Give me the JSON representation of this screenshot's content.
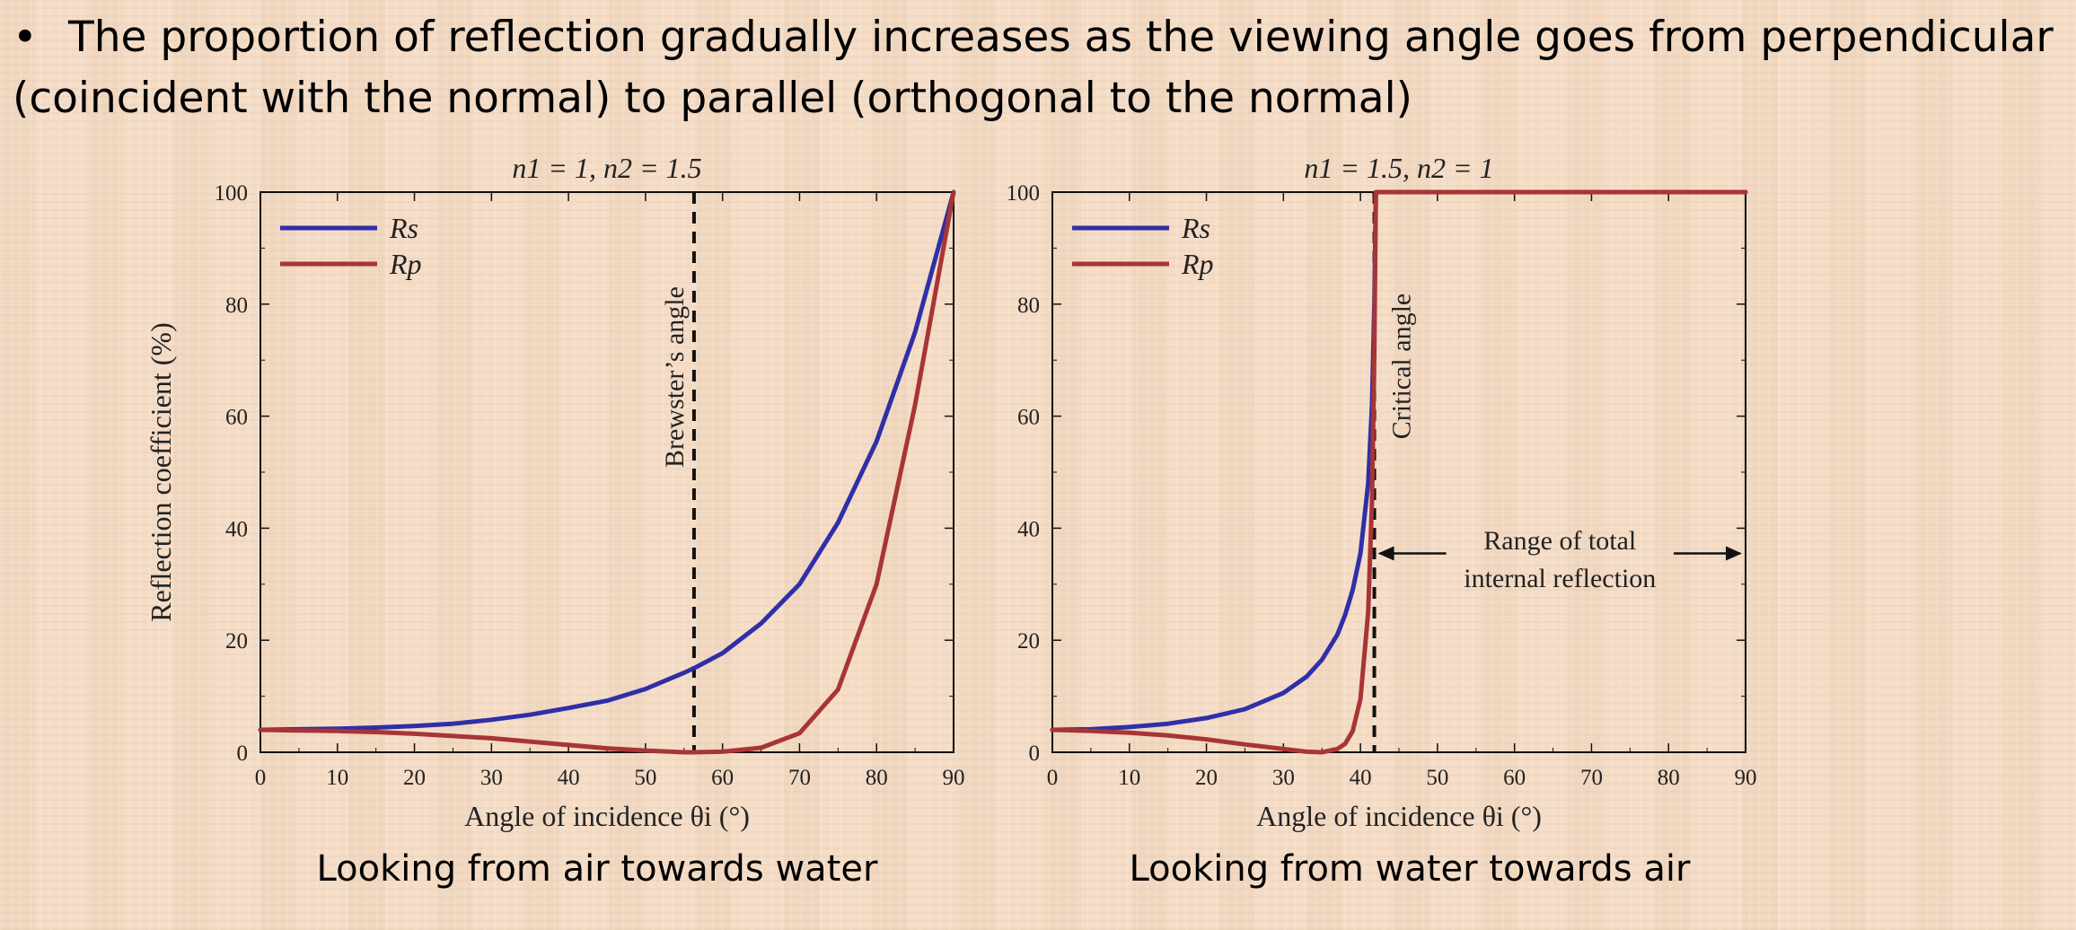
{
  "slide": {
    "bullet": "•",
    "bullet_text": "The proportion of reflection gradually increases as the viewing angle goes from perpendicular (coincident with the normal) to parallel (orthogonal to the normal)",
    "caption_left": "Looking from air towards water",
    "caption_right": "Looking from water towards air"
  },
  "colors": {
    "Rs": "#2f2fa8",
    "Rp": "#a83535",
    "marker": "#111111"
  },
  "chart_data": [
    {
      "type": "line",
      "title": "n1 = 1,  n2 = 1.5",
      "xlabel": "Angle of incidence θi (°)",
      "ylabel": "Reflection coefficient (%)",
      "xlim": [
        0,
        90
      ],
      "ylim": [
        0,
        100
      ],
      "xticks": [
        "0",
        "10",
        "20",
        "30",
        "40",
        "50",
        "60",
        "70",
        "80",
        "90"
      ],
      "yticks": [
        "0",
        "20",
        "40",
        "60",
        "80",
        "100"
      ],
      "legend": "top-left",
      "x": [
        0,
        5,
        10,
        15,
        20,
        25,
        30,
        35,
        40,
        45,
        50,
        55,
        56.3,
        60,
        65,
        70,
        75,
        80,
        85,
        90
      ],
      "series": [
        {
          "name": "Rs",
          "values": [
            4.0,
            4.1,
            4.2,
            4.4,
            4.7,
            5.1,
            5.8,
            6.7,
            7.9,
            9.2,
            11.3,
            14.2,
            15.0,
            17.7,
            23.0,
            30.0,
            41.0,
            55.5,
            75.0,
            100.0
          ]
        },
        {
          "name": "Rp",
          "values": [
            4.0,
            3.9,
            3.8,
            3.6,
            3.3,
            2.9,
            2.5,
            1.9,
            1.3,
            0.7,
            0.3,
            0.0,
            0.0,
            0.1,
            0.8,
            3.4,
            11.2,
            30.0,
            62.0,
            100.0
          ]
        }
      ],
      "annotations": [
        {
          "text": "Brewster’s angle",
          "x": 56.3
        }
      ]
    },
    {
      "type": "line",
      "title": "n1 = 1.5,  n2 = 1",
      "xlabel": "Angle of incidence θi (°)",
      "ylabel": "",
      "xlim": [
        0,
        90
      ],
      "ylim": [
        0,
        100
      ],
      "xticks": [
        "0",
        "10",
        "20",
        "30",
        "40",
        "50",
        "60",
        "70",
        "80",
        "90"
      ],
      "yticks": [
        "0",
        "20",
        "40",
        "60",
        "80",
        "100"
      ],
      "legend": "top-left",
      "x": [
        0,
        5,
        10,
        15,
        20,
        25,
        30,
        33,
        35,
        37,
        38,
        39,
        40,
        41,
        41.5,
        41.8,
        42,
        45,
        50,
        60,
        70,
        80,
        90
      ],
      "series": [
        {
          "name": "Rs",
          "values": [
            4.0,
            4.1,
            4.5,
            5.1,
            6.1,
            7.7,
            10.6,
            13.5,
            16.5,
            21.0,
            24.5,
            29.0,
            35.5,
            48.0,
            62.0,
            80.0,
            100.0,
            100.0,
            100.0,
            100.0,
            100.0,
            100.0,
            100.0
          ]
        },
        {
          "name": "Rp",
          "values": [
            4.0,
            3.8,
            3.5,
            3.0,
            2.3,
            1.4,
            0.6,
            0.1,
            0.0,
            0.6,
            1.5,
            3.8,
            9.5,
            25.0,
            45.0,
            72.0,
            100.0,
            100.0,
            100.0,
            100.0,
            100.0,
            100.0,
            100.0
          ]
        }
      ],
      "annotations": [
        {
          "text": "Critical angle",
          "x": 41.8
        },
        {
          "text": "Range of total",
          "text2": "internal reflection",
          "x_from": 41.8,
          "x_to": 90
        }
      ]
    }
  ]
}
